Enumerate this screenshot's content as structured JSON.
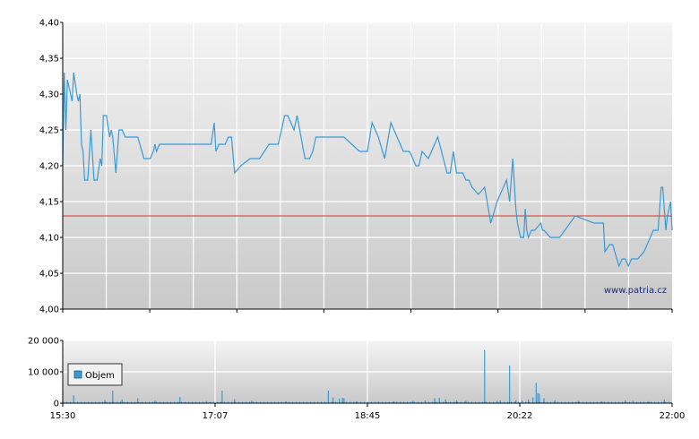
{
  "watermark": "www.patria.cz",
  "colors": {
    "price_line": "#3a9bd4",
    "reference_line": "#d73030",
    "volume_bar": "#3a9bd4",
    "grid": "#ffffff",
    "axis": "#000000"
  },
  "chart_data": [
    {
      "type": "line",
      "name": "price",
      "x_labels": [
        "15:30",
        "17:07",
        "18:45",
        "20:22",
        "22:00"
      ],
      "xlim": [
        "15:30",
        "22:00"
      ],
      "ylim": [
        4.0,
        4.4
      ],
      "y_ticks": [
        "4,00",
        "4,05",
        "4,10",
        "4,15",
        "4,20",
        "4,25",
        "4,30",
        "4,35",
        "4,40"
      ],
      "reference_line": 4.13,
      "grid": true,
      "series": [
        {
          "x": [
            "15:30",
            "15:31",
            "15:32",
            "15:33",
            "15:34",
            "15:35",
            "15:36",
            "15:37",
            "15:39",
            "15:40",
            "15:41",
            "15:42",
            "15:43",
            "15:44",
            "15:46",
            "15:48",
            "15:50",
            "15:52",
            "15:54",
            "15:55",
            "15:56",
            "15:58",
            "16:00",
            "16:01",
            "16:02",
            "16:04",
            "16:06",
            "16:08",
            "16:10",
            "16:11",
            "16:12",
            "16:14",
            "16:16",
            "16:18",
            "16:22",
            "16:26",
            "16:28",
            "16:29",
            "16:30",
            "16:32",
            "16:34",
            "16:35",
            "16:37",
            "16:40",
            "16:50",
            "17:05",
            "17:07",
            "17:08",
            "17:10",
            "17:14",
            "17:16",
            "17:18",
            "17:20",
            "17:24",
            "17:30",
            "17:36",
            "17:42",
            "17:48",
            "17:50",
            "17:52",
            "17:54",
            "17:58",
            "18:00",
            "18:05",
            "18:08",
            "18:10",
            "18:12",
            "18:18",
            "18:20",
            "18:24",
            "18:30",
            "18:40",
            "18:45",
            "18:48",
            "18:52",
            "18:56",
            "19:00",
            "19:02",
            "19:08",
            "19:12",
            "19:16",
            "19:18",
            "19:20",
            "19:24",
            "19:30",
            "19:36",
            "19:38",
            "19:40",
            "19:42",
            "19:46",
            "19:48",
            "19:50",
            "19:52",
            "19:56",
            "20:00",
            "20:04",
            "20:08",
            "20:10",
            "20:14",
            "20:16",
            "20:18",
            "20:20",
            "20:21",
            "20:22",
            "20:23",
            "20:24",
            "20:25",
            "20:26",
            "20:27",
            "20:28",
            "20:30",
            "20:32",
            "20:36",
            "20:37",
            "20:38",
            "20:42",
            "20:48",
            "20:58",
            "21:10",
            "21:16",
            "21:17",
            "21:20",
            "21:22",
            "21:26",
            "21:28",
            "21:30",
            "21:32",
            "21:34",
            "21:36",
            "21:38",
            "21:42",
            "21:46",
            "21:48",
            "21:51",
            "21:53",
            "21:54",
            "21:56",
            "21:57",
            "21:59",
            "22:00"
          ],
          "y": [
            4.2,
            4.33,
            4.25,
            4.32,
            4.31,
            4.3,
            4.29,
            4.33,
            4.3,
            4.29,
            4.3,
            4.23,
            4.22,
            4.18,
            4.18,
            4.25,
            4.18,
            4.18,
            4.21,
            4.2,
            4.27,
            4.27,
            4.24,
            4.25,
            4.24,
            4.19,
            4.25,
            4.25,
            4.24,
            4.24,
            4.24,
            4.24,
            4.24,
            4.24,
            4.21,
            4.21,
            4.22,
            4.23,
            4.22,
            4.23,
            4.23,
            4.23,
            4.23,
            4.23,
            4.23,
            4.23,
            4.26,
            4.22,
            4.23,
            4.23,
            4.24,
            4.24,
            4.19,
            4.2,
            4.21,
            4.21,
            4.23,
            4.23,
            4.25,
            4.27,
            4.27,
            4.25,
            4.27,
            4.21,
            4.21,
            4.22,
            4.24,
            4.24,
            4.24,
            4.24,
            4.24,
            4.22,
            4.22,
            4.26,
            4.24,
            4.21,
            4.26,
            4.25,
            4.22,
            4.22,
            4.2,
            4.2,
            4.22,
            4.21,
            4.24,
            4.19,
            4.19,
            4.22,
            4.19,
            4.19,
            4.18,
            4.18,
            4.17,
            4.16,
            4.17,
            4.12,
            4.15,
            4.16,
            4.18,
            4.15,
            4.21,
            4.14,
            4.12,
            4.11,
            4.1,
            4.1,
            4.1,
            4.14,
            4.11,
            4.1,
            4.11,
            4.11,
            4.12,
            4.11,
            4.11,
            4.1,
            4.1,
            4.13,
            4.12,
            4.12,
            4.08,
            4.09,
            4.09,
            4.06,
            4.07,
            4.07,
            4.06,
            4.07,
            4.07,
            4.07,
            4.08,
            4.1,
            4.11,
            4.11,
            4.17,
            4.17,
            4.11,
            4.13,
            4.15,
            4.11
          ]
        }
      ]
    },
    {
      "type": "bar",
      "name": "volume",
      "legend": [
        "Objem"
      ],
      "x_labels": [
        "15:30",
        "17:07",
        "18:45",
        "20:22",
        "22:00"
      ],
      "ylim": [
        0,
        20000
      ],
      "y_ticks": [
        "0",
        "10 000",
        "20 000"
      ],
      "grid": true,
      "series": [
        {
          "name": "Objem",
          "x": [
            "15:37",
            "15:57",
            "16:02",
            "16:08",
            "16:18",
            "16:29",
            "16:45",
            "17:02",
            "17:12",
            "17:20",
            "17:31",
            "17:53",
            "18:20",
            "18:23",
            "18:27",
            "18:29",
            "18:30",
            "18:38",
            "18:52",
            "19:02",
            "19:14",
            "19:22",
            "19:28",
            "19:31",
            "19:35",
            "19:42",
            "19:48",
            "20:00",
            "20:08",
            "20:10",
            "20:16",
            "20:20",
            "20:24",
            "20:28",
            "20:31",
            "20:33",
            "20:34",
            "20:35",
            "20:38",
            "20:45",
            "21:00",
            "21:15",
            "21:30",
            "21:35",
            "21:45",
            "21:55"
          ],
          "values": [
            2500,
            1000,
            4000,
            1200,
            1600,
            800,
            2000,
            700,
            4000,
            1300,
            800,
            600,
            4000,
            1800,
            1500,
            1700,
            1600,
            600,
            500,
            600,
            700,
            800,
            1600,
            1700,
            1200,
            900,
            700,
            17000,
            700,
            900,
            12000,
            900,
            800,
            1200,
            1800,
            6500,
            3200,
            3000,
            1600,
            900,
            700,
            600,
            900,
            700,
            600,
            1200
          ]
        }
      ]
    }
  ]
}
